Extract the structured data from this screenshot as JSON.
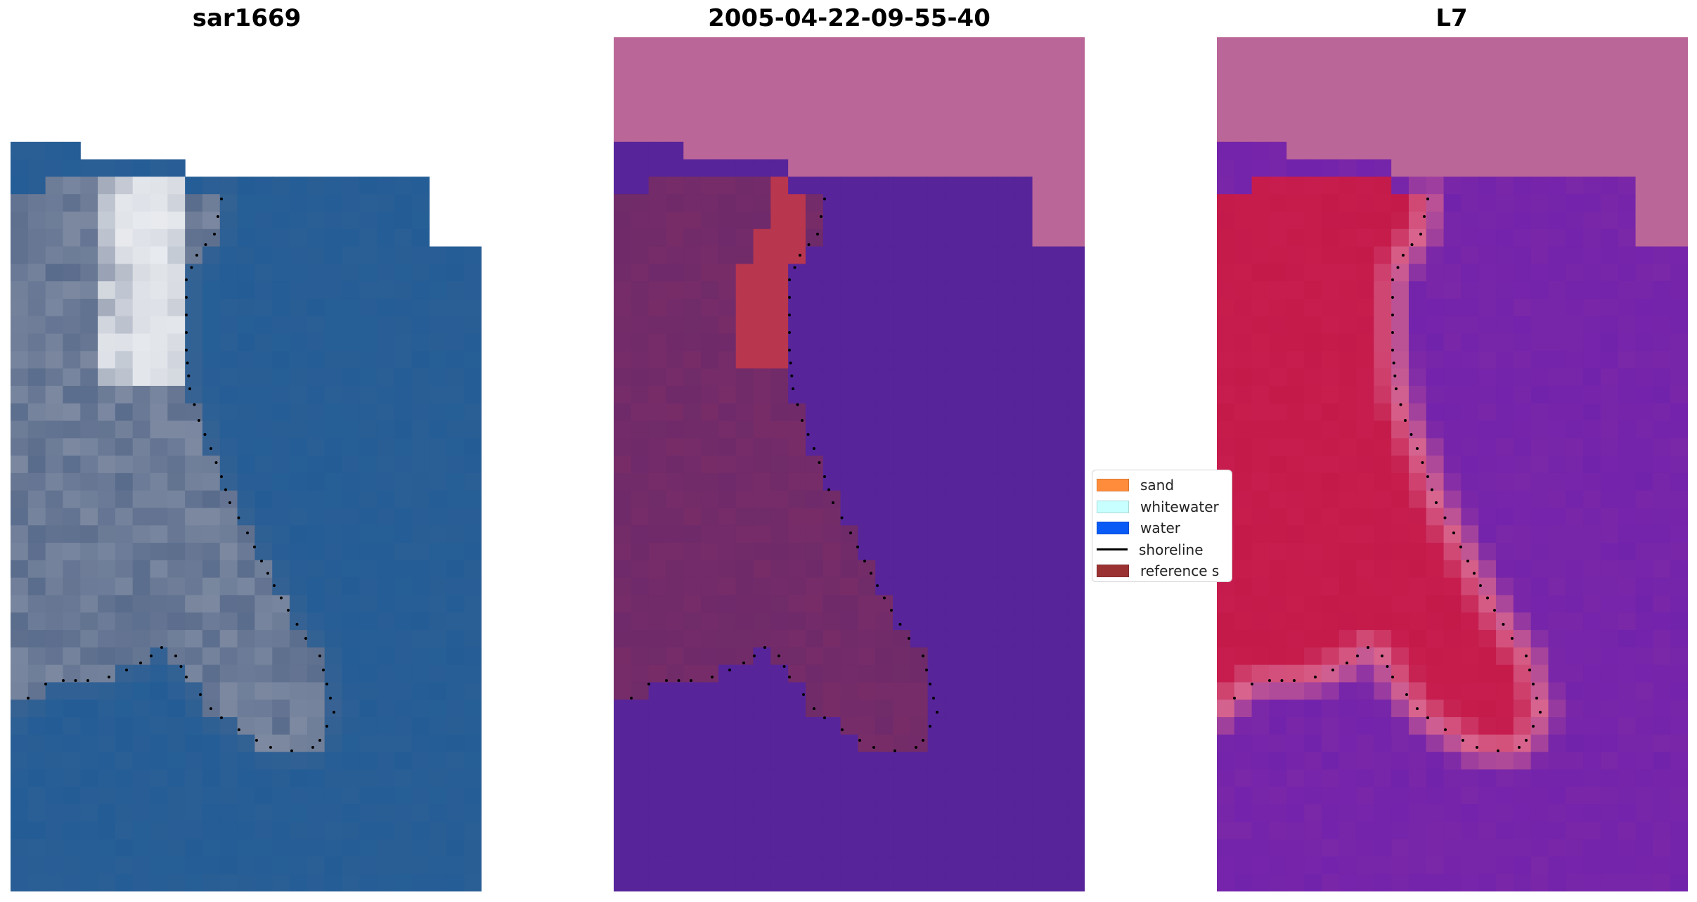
{
  "panels": [
    {
      "id": "rgb",
      "title": "sar1669"
    },
    {
      "id": "classified",
      "title": "2005-04-22-09-55-40"
    },
    {
      "id": "index",
      "title": "L7"
    }
  ],
  "legend": {
    "items": [
      {
        "label": "sand",
        "color": "#ff8c3a",
        "kind": "patch"
      },
      {
        "label": "whitewater",
        "color": "#c8ffff",
        "kind": "patch"
      },
      {
        "label": "water",
        "color": "#0a5af5",
        "kind": "patch"
      },
      {
        "label": "shoreline",
        "color": "#000000",
        "kind": "line"
      },
      {
        "label": "reference s",
        "color": "#9b3232",
        "kind": "patch"
      }
    ]
  },
  "colors": {
    "rgb_land": "#5a6c8c",
    "rgb_land_light": "#8c96aa",
    "rgb_water": "#245d96",
    "rgb_whitewater": "#f2f4f6",
    "class_nodata": "#bb6698",
    "class_land": "#6e2a6a",
    "class_water": "#57249a",
    "class_reference": "#b8364e",
    "index_nodata": "#bb6698",
    "index_land": "#c41a4a",
    "index_edge": "#d8658e",
    "index_water": "#7a27a8",
    "shoreline": "#000000"
  }
}
